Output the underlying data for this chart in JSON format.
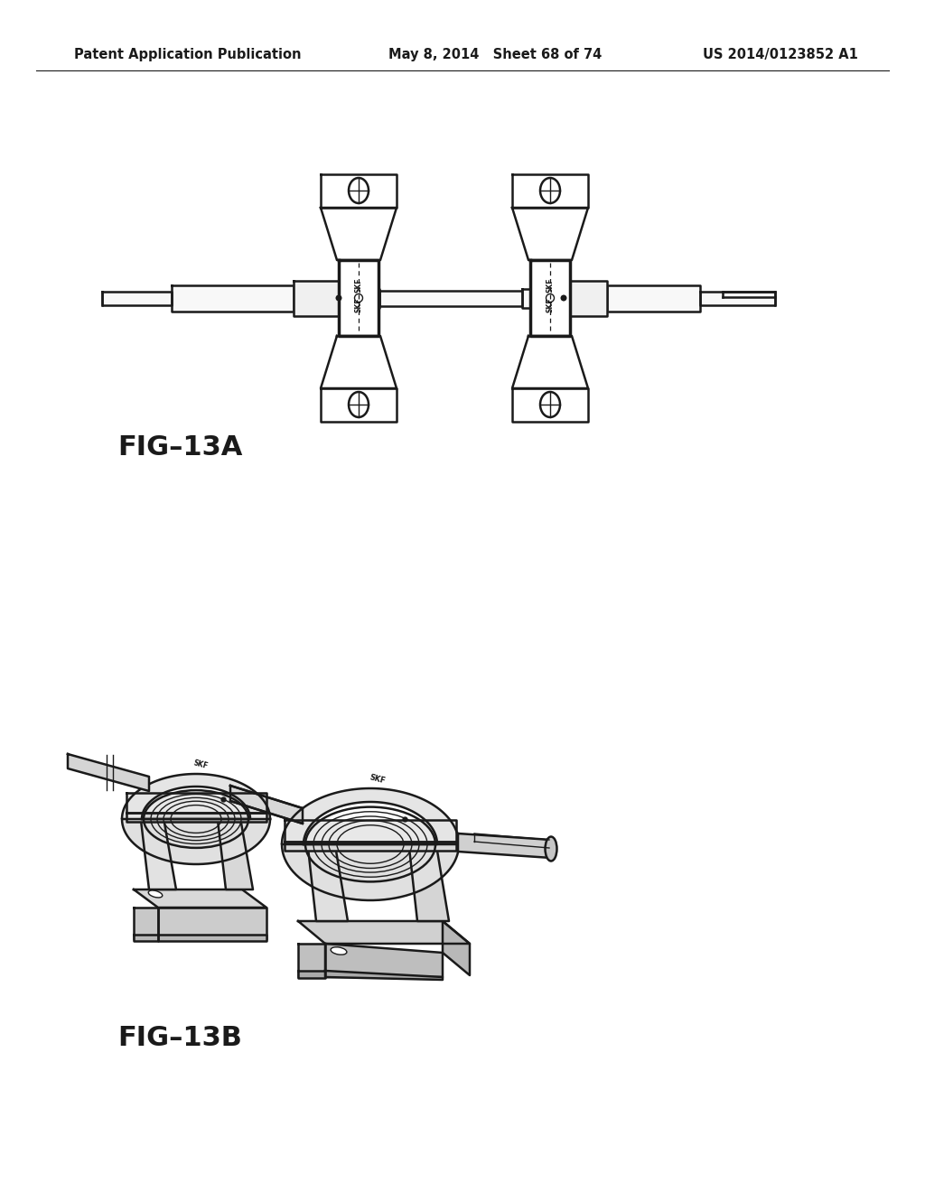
{
  "background_color": "#ffffff",
  "header": {
    "left": "Patent Application Publication",
    "center": "May 8, 2014   Sheet 68 of 74",
    "right": "US 2014/0123852 A1",
    "fontsize": 10.5,
    "fontweight": "bold"
  },
  "fig13a_label": "FIG–13A",
  "fig13b_label": "FIG–13B",
  "label_fontsize": 22,
  "label_fontweight": "bold",
  "line_color": "#1a1a1a",
  "lw_main": 1.8,
  "lw_thin": 1.0,
  "lw_thick": 2.5
}
